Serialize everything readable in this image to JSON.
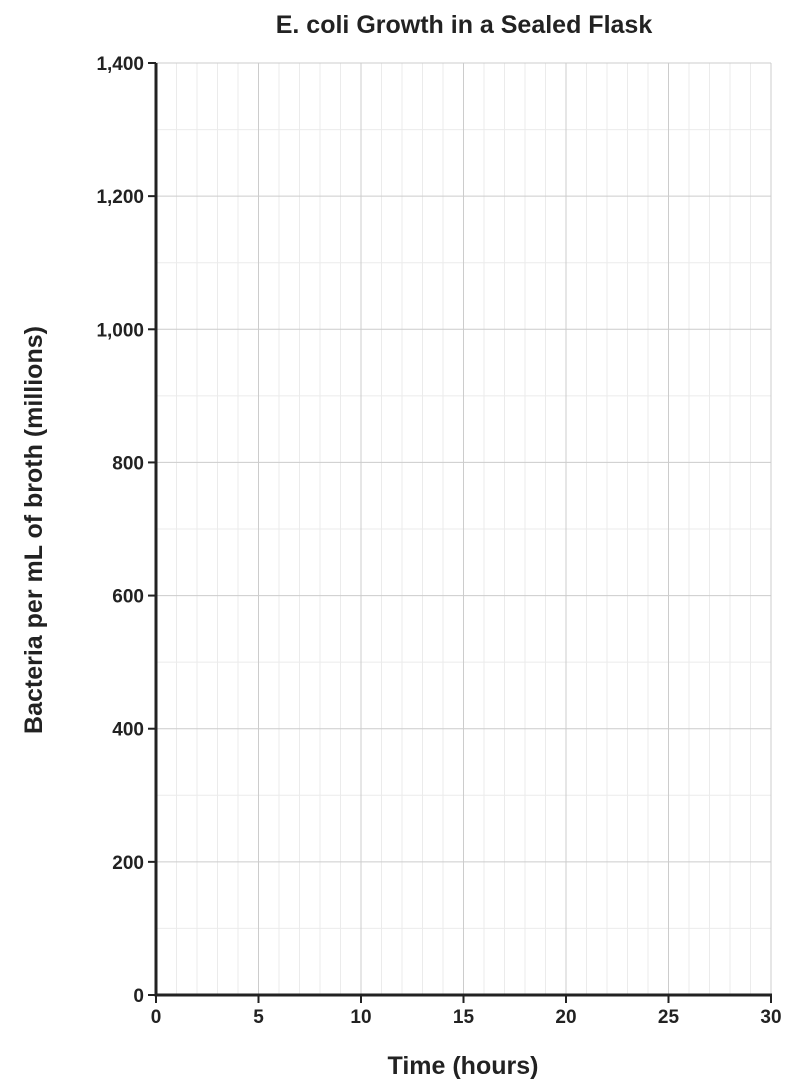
{
  "chart_data": {
    "type": "line",
    "title": "E. coli Growth in a Sealed Flask",
    "xlabel": "Time (hours)",
    "ylabel": "Bacteria per mL of broth (millions)",
    "xlim": [
      0,
      30
    ],
    "ylim": [
      0,
      1400
    ],
    "x_major_step": 5,
    "x_minor_step": 1,
    "y_major_step": 200,
    "y_minor_step": 100,
    "x_tick_labels": [
      "0",
      "5",
      "10",
      "15",
      "20",
      "25",
      "30"
    ],
    "y_tick_labels": [
      "0",
      "200",
      "400",
      "600",
      "800",
      "1,000",
      "1,200",
      "1,400"
    ],
    "grid": true,
    "series": []
  }
}
